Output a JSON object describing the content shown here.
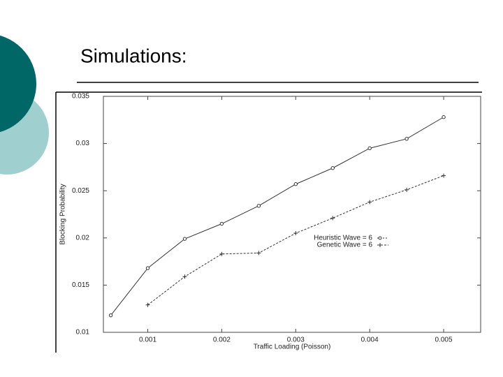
{
  "chart_data": {
    "type": "line",
    "title": "Simulations:",
    "x_label": "Traffic Loading (Poisson)",
    "y_label": "Blocking Probability",
    "x": [
      0.0005,
      0.001,
      0.0015,
      0.002,
      0.0025,
      0.003,
      0.0035,
      0.004,
      0.0045,
      0.005
    ],
    "series": [
      {
        "name": "Heuristic Wave = 6",
        "color": "#333333",
        "marker": "circle",
        "values": [
          0.0118,
          0.0168,
          0.0199,
          0.0215,
          0.0234,
          0.0257,
          0.0274,
          0.0295,
          0.0305,
          0.0328
        ]
      },
      {
        "name": "Genetic Wave = 6",
        "color": "#333333",
        "marker": "plus",
        "values": [
          null,
          0.0129,
          0.0159,
          0.0183,
          0.0184,
          0.0205,
          0.0221,
          0.0238,
          0.0251,
          0.0266
        ]
      }
    ],
    "xlim": [
      0.0004,
      0.0055
    ],
    "xticks": [
      0.001,
      0.002,
      0.003,
      0.004,
      0.005
    ],
    "ylim": [
      0.01,
      0.035
    ],
    "yticks": [
      0.01,
      0.015,
      0.02,
      0.025,
      0.03,
      0.035
    ],
    "grid": false
  }
}
